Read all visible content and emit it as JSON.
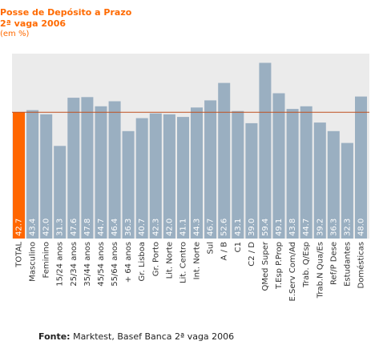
{
  "chart_data": {
    "type": "bar",
    "title": "Posse de Depósito a Prazo",
    "subtitle": "2ª vaga 2006",
    "unit": "(em %)",
    "categories": [
      "TOTAL",
      "Masculino",
      "Feminino",
      "15/24 anos",
      "25/34 anos",
      "35/44 anos",
      "45/54 anos",
      "55/64 anos",
      "+ 64 anos",
      "Gr. Lisboa",
      "Gr. Porto",
      "Lit. Norte",
      "Lit. Centro",
      "Int. Norte",
      "Sul",
      "A / B",
      "C1",
      "C2 / D",
      "QMed Super",
      "T.Esp P.Prop",
      "E.Serv Com/Ad",
      "Trab. Q/Esp",
      "Trab.N Qua/Es",
      "Ref/P Dese",
      "Estudantes",
      "Domésticas"
    ],
    "values": [
      42.7,
      43.4,
      42.0,
      31.3,
      47.6,
      47.8,
      44.7,
      46.4,
      36.3,
      40.7,
      42.3,
      42.0,
      41.1,
      44.3,
      46.7,
      52.6,
      43.1,
      39.0,
      59.4,
      49.1,
      43.8,
      44.7,
      39.2,
      36.3,
      32.3,
      48.0
    ],
    "value_labels": [
      "42.7",
      "43.4",
      "42.0",
      "31.3",
      "47.6",
      "47.8",
      "44.7",
      "46.4",
      "36.3",
      "40.7",
      "42.3",
      "42.0",
      "41.1",
      "44.3",
      "46.7",
      "52.6",
      "43.1",
      "39.0",
      "59.4",
      "49.1",
      "43.8",
      "44.7",
      "39.2",
      "36.3",
      "32.3",
      "48.0"
    ],
    "reference_line": 42.7,
    "ylim": [
      0,
      62.5
    ],
    "grid": false,
    "legend": "none",
    "colors": {
      "highlight_bar": "#ff6600",
      "bar": "#9aafc1",
      "reference_line": "#c0501f",
      "plot_background": "#ebebeb",
      "title": "#ff6a00"
    }
  },
  "source": {
    "label": "Fonte:",
    "text": " Marktest, Basef Banca 2ª vaga 2006"
  }
}
